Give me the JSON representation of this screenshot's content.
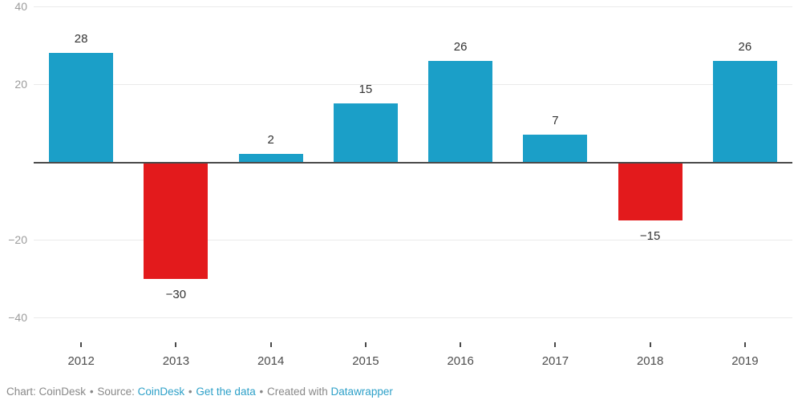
{
  "chart_data": {
    "type": "bar",
    "categories": [
      "2012",
      "2013",
      "2014",
      "2015",
      "2016",
      "2017",
      "2018",
      "2019"
    ],
    "values": [
      28,
      -30,
      2,
      15,
      26,
      7,
      -15,
      26
    ],
    "value_labels": [
      "28",
      "−30",
      "2",
      "15",
      "26",
      "7",
      "−15",
      "26"
    ],
    "title": "",
    "xlabel": "",
    "ylabel": "",
    "ylim": [
      -40,
      40
    ],
    "yticks": [
      {
        "value": 40,
        "label": "40"
      },
      {
        "value": 20,
        "label": "20"
      },
      {
        "value": 0,
        "label": ""
      },
      {
        "value": -20,
        "label": "−20"
      },
      {
        "value": -40,
        "label": "−40"
      }
    ],
    "grid": true,
    "legend": "none",
    "positive_color": "#1b9fc8",
    "negative_color": "#e31a1c"
  },
  "footer": {
    "chart_label": "Chart: CoinDesk",
    "separator": "•",
    "source_label": "Source:",
    "source_link": "CoinDesk",
    "get_data_link": "Get the data",
    "created_label": "Created with",
    "datawrapper_link": "Datawrapper"
  },
  "colors": {
    "positive": "#1b9fc8",
    "negative": "#e31a1c",
    "link": "#2da0c8",
    "footer_text": "#888888",
    "y_tick_label": "#9c9c9c",
    "value_label": "#333333",
    "year_label": "#4d4d4d",
    "gridline": "#eaeaea",
    "zero_line": "#4a4a4a"
  }
}
